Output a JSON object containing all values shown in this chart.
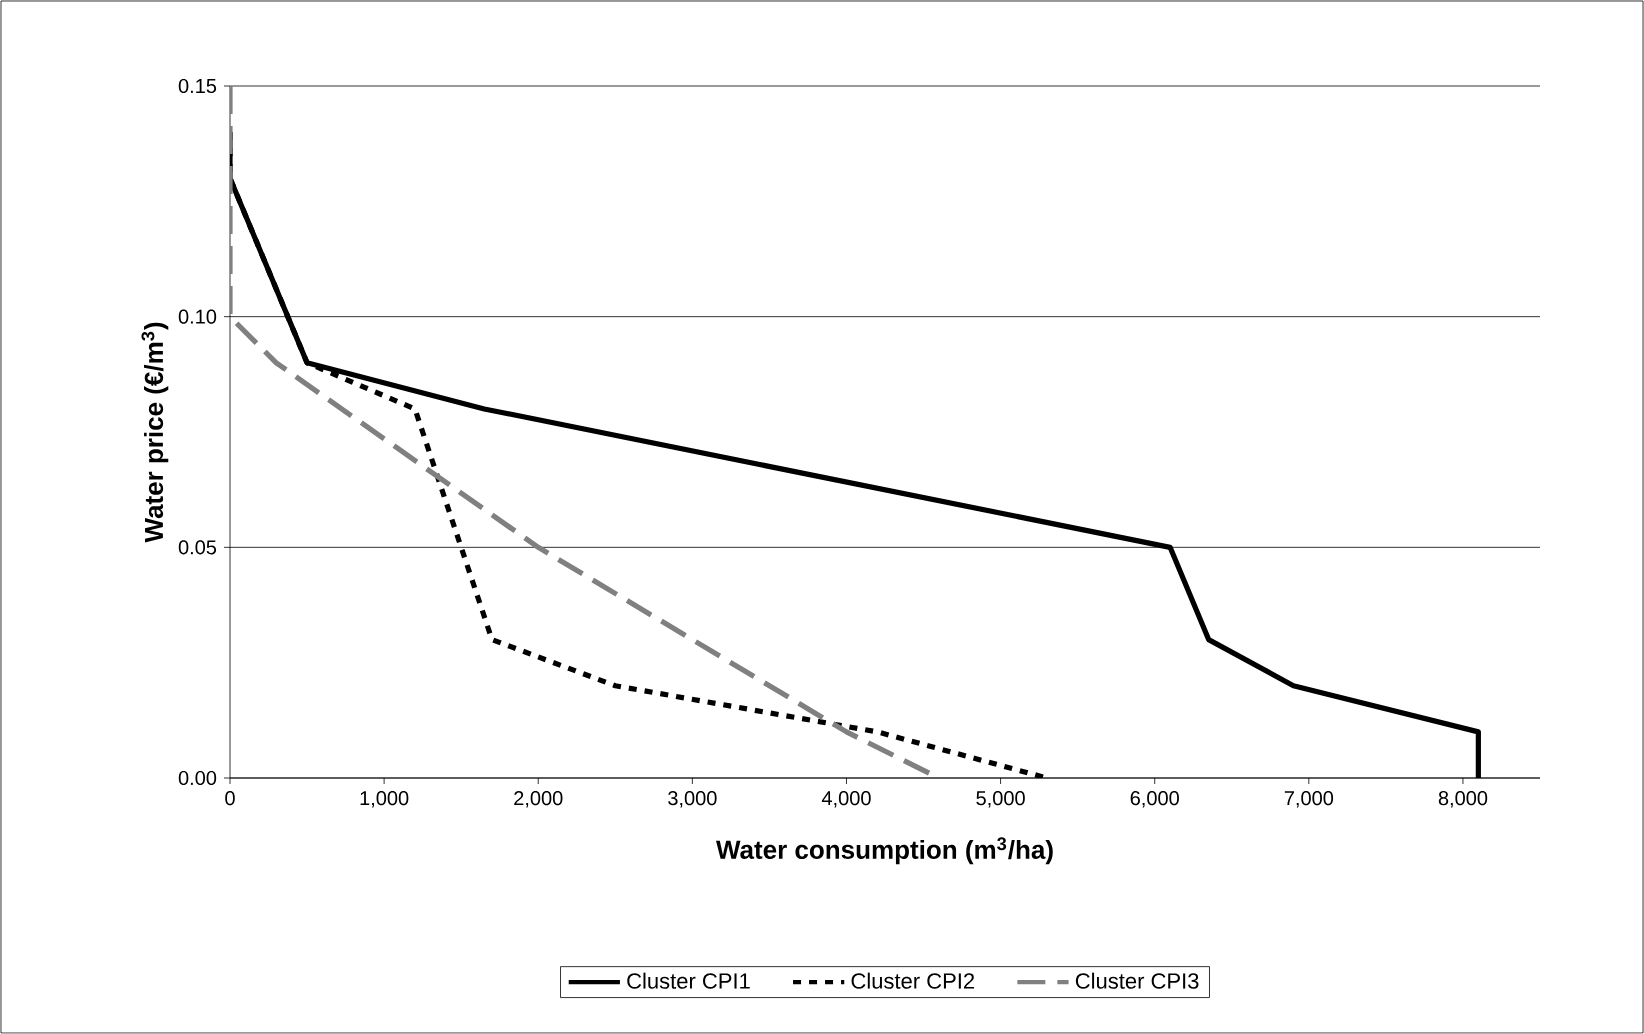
{
  "chart_data": {
    "type": "line",
    "xlabel": "Water consumption (m$^{3}$/ha)",
    "ylabel": "Water price (€/m$^{3}$)",
    "xlim": [
      0,
      8500
    ],
    "ylim": [
      0,
      0.15
    ],
    "xticks": [
      0,
      {
        "value": 1000,
        "label": "1,000"
      },
      {
        "value": 2000,
        "label": "2,000"
      },
      {
        "value": 3000,
        "label": "3,000"
      },
      {
        "value": 4000,
        "label": "4,000"
      },
      {
        "value": 5000,
        "label": "5,000"
      },
      {
        "value": 6000,
        "label": "6,000"
      },
      {
        "value": 7000,
        "label": "7,000"
      },
      {
        "value": 8000,
        "label": "8,000"
      }
    ],
    "yticks": [
      {
        "value": 0,
        "label": "0.00"
      },
      {
        "value": 0.05,
        "label": "0.05"
      },
      {
        "value": 0.1,
        "label": "0.10"
      },
      {
        "value": 0.15,
        "label": "0.15"
      }
    ],
    "grid": "y",
    "legend": "bottom",
    "series": [
      {
        "name": "Cluster CPI1",
        "color": "#000000",
        "line_style": "solid",
        "x": [
          0,
          0,
          500,
          1650,
          6100,
          6350,
          6900,
          8100,
          8100
        ],
        "values": [
          0.14,
          0.13,
          0.09,
          0.08,
          0.05,
          0.03,
          0.02,
          0.01,
          0
        ]
      },
      {
        "name": "Cluster CPI2",
        "color": "#000000",
        "line_style": "dotted",
        "x": [
          0,
          0,
          500,
          1200,
          1700,
          2500,
          4200,
          5300
        ],
        "values": [
          0.14,
          0.13,
          0.09,
          0.08,
          0.03,
          0.02,
          0.01,
          0
        ]
      },
      {
        "name": "Cluster CPI3",
        "color": "#808080",
        "line_style": "dashed",
        "x": [
          0,
          0,
          300,
          2000,
          4000,
          4600
        ],
        "values": [
          0.15,
          0.1,
          0.09,
          0.05,
          0.01,
          0
        ]
      }
    ]
  }
}
